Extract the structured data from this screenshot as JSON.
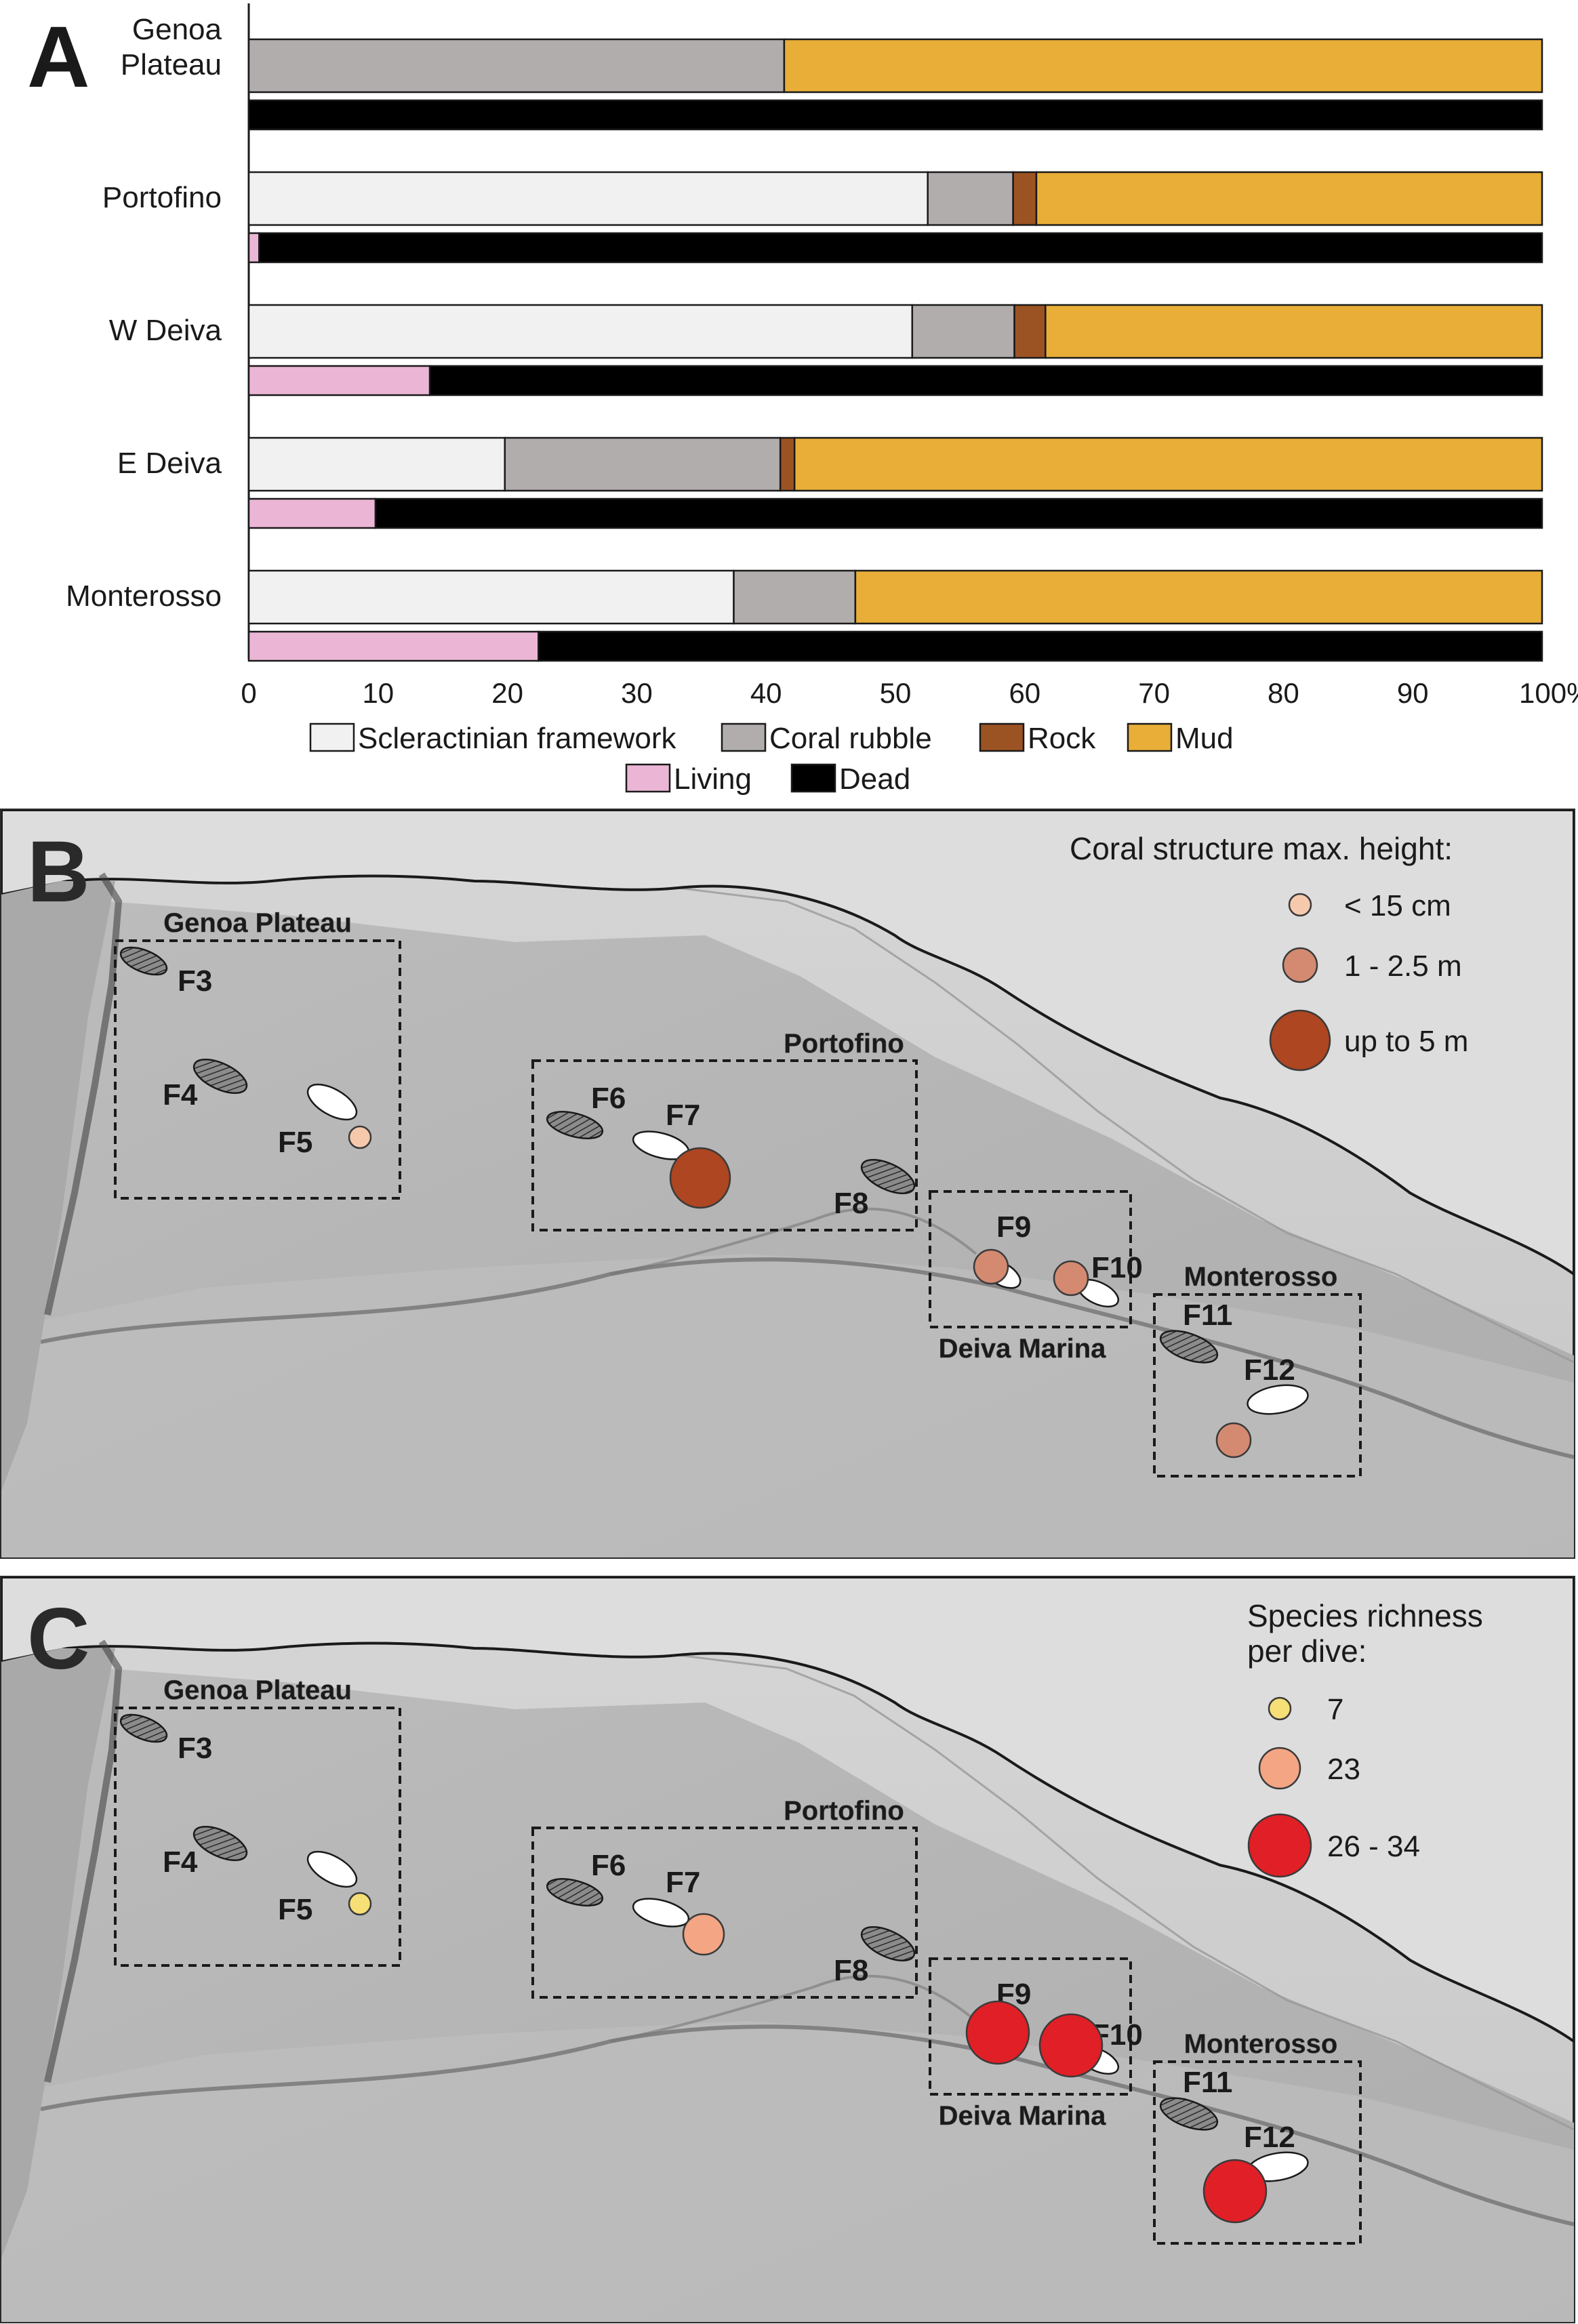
{
  "panels": {
    "A": {
      "letter": "A"
    },
    "B": {
      "letter": "B"
    },
    "C": {
      "letter": "C"
    }
  },
  "chart_data": [
    {
      "type": "bar",
      "stacked": true,
      "orientation": "horizontal",
      "title": "",
      "xlabel": "",
      "ylabel": "",
      "xlim": [
        0,
        100
      ],
      "x_ticks": [
        "0",
        "10",
        "20",
        "30",
        "40",
        "50",
        "60",
        "70",
        "80",
        "90",
        "100%"
      ],
      "categories": [
        "Genoa Plateau",
        "Portofino",
        "W Deiva",
        "E Deiva",
        "Monterosso"
      ],
      "category_lines": [
        [
          "Genoa",
          "Plateau"
        ],
        [
          "Portofino"
        ],
        [
          "W Deiva"
        ],
        [
          "E Deiva"
        ],
        [
          "Monterosso"
        ]
      ],
      "substrate_series": [
        {
          "name": "Scleractinian framework",
          "color": "#f2f1f1",
          "values": [
            0,
            52.5,
            51.3,
            19.8,
            37.5
          ]
        },
        {
          "name": "Coral rubble",
          "color": "#b2adad",
          "values": [
            41.4,
            6.6,
            7.9,
            21.3,
            9.4
          ]
        },
        {
          "name": "Rock",
          "color": "#9c5323",
          "values": [
            0,
            1.8,
            2.4,
            1.1,
            0
          ]
        },
        {
          "name": "Mud",
          "color": "#e8ae38",
          "values": [
            58.6,
            39.1,
            38.4,
            57.8,
            53.1
          ]
        }
      ],
      "condition_series": [
        {
          "name": "Living",
          "color": "#ebb6d5",
          "values": [
            0,
            0.8,
            14.0,
            9.8,
            22.4
          ]
        },
        {
          "name": "Dead",
          "color": "#000000",
          "values": [
            100,
            99.2,
            86.0,
            90.2,
            77.6
          ]
        }
      ],
      "legend_placement": "bottom-center"
    },
    {
      "type": "scatter",
      "title": "",
      "legend_title": "Coral structure max. height:",
      "legend": [
        {
          "label": "< 15 cm",
          "color": "#f6c9ad"
        },
        {
          "label": "1 - 2.5 m",
          "color": "#d48a71"
        },
        {
          "label": "up to 5 m",
          "color": "#ad4621"
        }
      ],
      "areas": [
        "Genoa Plateau",
        "Portofino",
        "Deiva Marina",
        "Monterosso"
      ],
      "sites": [
        "F3",
        "F4",
        "F5",
        "F6",
        "F7",
        "F8",
        "F9",
        "F10",
        "F11",
        "F12"
      ],
      "markers": [
        {
          "site": "F5",
          "class": "< 15 cm"
        },
        {
          "site": "F7",
          "class": "up to 5 m"
        },
        {
          "site": "F9",
          "class": "1 - 2.5 m"
        },
        {
          "site": "F10",
          "class": "1 - 2.5 m"
        },
        {
          "site": "F12",
          "class": "1 - 2.5 m"
        }
      ]
    },
    {
      "type": "scatter",
      "title": "",
      "legend_title": "Species richness per dive:",
      "legend_title_lines": [
        "Species richness",
        "per dive:"
      ],
      "legend": [
        {
          "label": "7",
          "color": "#f6df76"
        },
        {
          "label": "23",
          "color": "#f3a584"
        },
        {
          "label": "26 - 34",
          "color": "#e11f26"
        }
      ],
      "areas": [
        "Genoa Plateau",
        "Portofino",
        "Deiva Marina",
        "Monterosso"
      ],
      "sites": [
        "F3",
        "F4",
        "F5",
        "F6",
        "F7",
        "F8",
        "F9",
        "F10",
        "F11",
        "F12"
      ],
      "markers": [
        {
          "site": "F5",
          "class": "7"
        },
        {
          "site": "F7",
          "class": "23"
        },
        {
          "site": "F9",
          "class": "26 - 34"
        },
        {
          "site": "F10",
          "class": "26 - 34"
        },
        {
          "site": "F12",
          "class": "26 - 34"
        }
      ]
    }
  ]
}
